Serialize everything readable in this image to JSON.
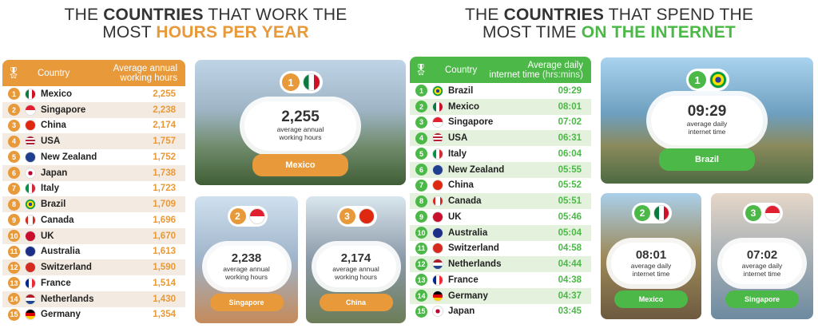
{
  "left": {
    "title_l1_pre": "THE ",
    "title_l1_bold": "COUNTRIES",
    "title_l1_post": " THAT WORK THE",
    "title_l2_pre": "MOST ",
    "title_l2_accent": "HOURS PER YEAR",
    "accent": "#e8993a",
    "alt_row": "#f3ebe1",
    "header": {
      "country": "Country",
      "value_l1": "Average annual",
      "value_l2": "working hours"
    },
    "rows": [
      {
        "rank": "1",
        "country": "Mexico",
        "flag": "mx",
        "value": "2,255"
      },
      {
        "rank": "2",
        "country": "Singapore",
        "flag": "sg",
        "value": "2,238"
      },
      {
        "rank": "3",
        "country": "China",
        "flag": "cn",
        "value": "2,174"
      },
      {
        "rank": "4",
        "country": "USA",
        "flag": "us",
        "value": "1,757"
      },
      {
        "rank": "5",
        "country": "New Zealand",
        "flag": "nz",
        "value": "1,752"
      },
      {
        "rank": "6",
        "country": "Japan",
        "flag": "jp",
        "value": "1,738"
      },
      {
        "rank": "7",
        "country": "Italy",
        "flag": "it",
        "value": "1,723"
      },
      {
        "rank": "8",
        "country": "Brazil",
        "flag": "br",
        "value": "1,709"
      },
      {
        "rank": "9",
        "country": "Canada",
        "flag": "ca",
        "value": "1,696"
      },
      {
        "rank": "10",
        "country": "UK",
        "flag": "uk",
        "value": "1,670"
      },
      {
        "rank": "11",
        "country": "Australia",
        "flag": "au",
        "value": "1,613"
      },
      {
        "rank": "12",
        "country": "Switzerland",
        "flag": "ch",
        "value": "1,590"
      },
      {
        "rank": "13",
        "country": "France",
        "flag": "fr",
        "value": "1,514"
      },
      {
        "rank": "14",
        "country": "Netherlands",
        "flag": "nl",
        "value": "1,430"
      },
      {
        "rank": "15",
        "country": "Germany",
        "flag": "de",
        "value": "1,354"
      }
    ],
    "cards": [
      {
        "rank": "1",
        "flag": "mx",
        "value": "2,255",
        "sub_l1": "average annual",
        "sub_l2": "working hours",
        "country": "Mexico"
      },
      {
        "rank": "2",
        "flag": "sg",
        "value": "2,238",
        "sub_l1": "average annual",
        "sub_l2": "working hours",
        "country": "Singapore"
      },
      {
        "rank": "3",
        "flag": "cn",
        "value": "2,174",
        "sub_l1": "average annual",
        "sub_l2": "working hours",
        "country": "China"
      }
    ]
  },
  "right": {
    "title_l1_pre": "THE ",
    "title_l1_bold": "COUNTRIES",
    "title_l1_post": " THAT SPEND THE",
    "title_l2_pre": "MOST TIME ",
    "title_l2_accent": "ON THE INTERNET",
    "accent": "#4cb848",
    "alt_row": "#e4f2dd",
    "header": {
      "country": "Country",
      "value_l1": "Average daily",
      "value_l2": "internet time",
      "value_unit": "(hrs:mins)"
    },
    "rows": [
      {
        "rank": "1",
        "country": "Brazil",
        "flag": "br",
        "value": "09:29"
      },
      {
        "rank": "2",
        "country": "Mexico",
        "flag": "mx",
        "value": "08:01"
      },
      {
        "rank": "3",
        "country": "Singapore",
        "flag": "sg",
        "value": "07:02"
      },
      {
        "rank": "4",
        "country": "USA",
        "flag": "us",
        "value": "06:31"
      },
      {
        "rank": "5",
        "country": "Italy",
        "flag": "it",
        "value": "06:04"
      },
      {
        "rank": "6",
        "country": "New Zealand",
        "flag": "nz",
        "value": "05:55"
      },
      {
        "rank": "7",
        "country": "China",
        "flag": "cn",
        "value": "05:52"
      },
      {
        "rank": "8",
        "country": "Canada",
        "flag": "ca",
        "value": "05:51"
      },
      {
        "rank": "9",
        "country": "UK",
        "flag": "uk",
        "value": "05:46"
      },
      {
        "rank": "10",
        "country": "Australia",
        "flag": "au",
        "value": "05:04"
      },
      {
        "rank": "11",
        "country": "Switzerland",
        "flag": "ch",
        "value": "04:58"
      },
      {
        "rank": "12",
        "country": "Netherlands",
        "flag": "nl",
        "value": "04:44"
      },
      {
        "rank": "13",
        "country": "France",
        "flag": "fr",
        "value": "04:38"
      },
      {
        "rank": "14",
        "country": "Germany",
        "flag": "de",
        "value": "04:37"
      },
      {
        "rank": "15",
        "country": "Japan",
        "flag": "jp",
        "value": "03:45"
      }
    ],
    "cards": [
      {
        "rank": "1",
        "flag": "br",
        "value": "09:29",
        "sub_l1": "average daily",
        "sub_l2": "internet time",
        "country": "Brazil"
      },
      {
        "rank": "2",
        "flag": "mx",
        "value": "08:01",
        "sub_l1": "average daily",
        "sub_l2": "internet time",
        "country": "Mexico"
      },
      {
        "rank": "3",
        "flag": "sg",
        "value": "07:02",
        "sub_l1": "average daily",
        "sub_l2": "internet time",
        "country": "Singapore"
      }
    ]
  }
}
